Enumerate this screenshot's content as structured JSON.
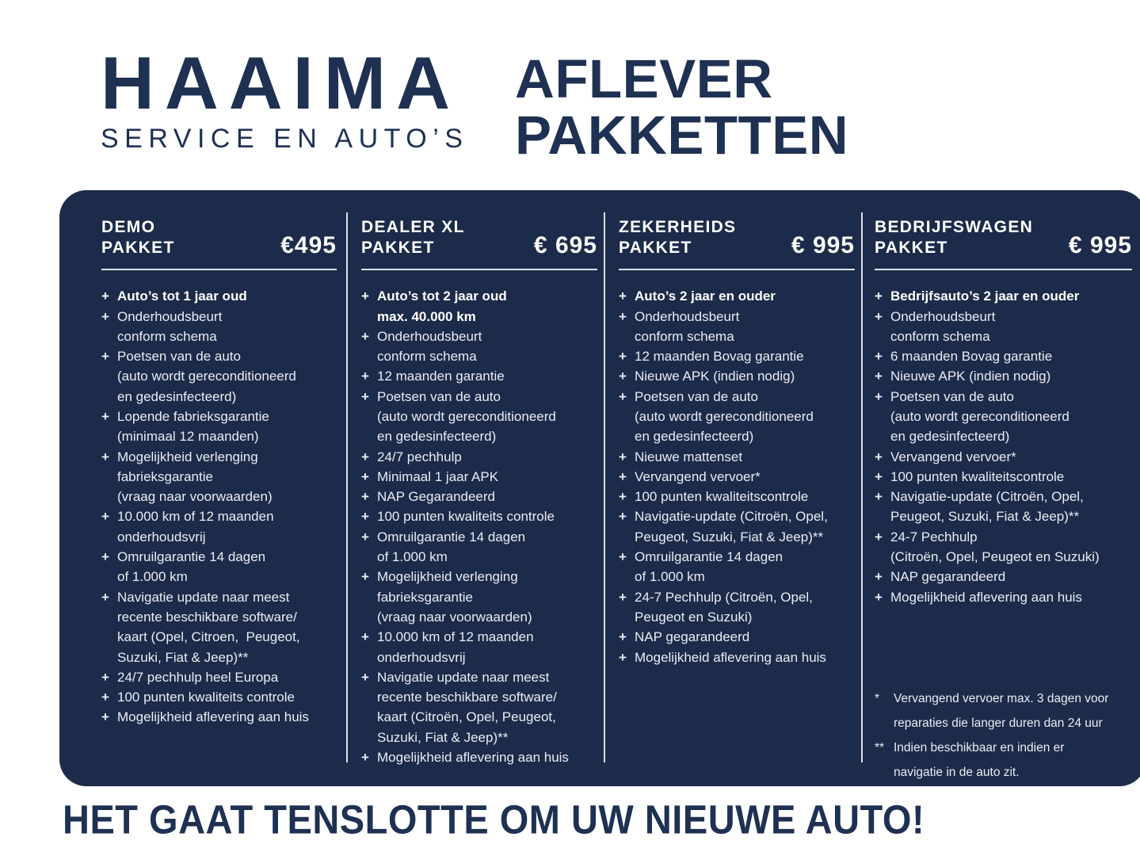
{
  "header": {
    "logo_name": "HAAIMA",
    "logo_tagline": "SERVICE EN AUTO’S",
    "title": "AFLEVER\nPAKKETTEN"
  },
  "colors": {
    "panel_bg": "#1d2b4a",
    "heading_navy": "#1f3152",
    "panel_text_light": "#e9ecf3",
    "page_bg": "#ffffff"
  },
  "icons": {
    "plus": "+"
  },
  "packages": [
    {
      "name": "DEMO\nPAKKET",
      "price": "€495",
      "items": [
        {
          "text": "Auto’s tot 1 jaar oud",
          "bold": true
        },
        {
          "text": "Onderhoudsbeurt\nconform schema"
        },
        {
          "text": "Poetsen van de auto\n(auto wordt gereconditioneerd\nen gedesinfecteerd)"
        },
        {
          "text": "Lopende fabrieksgarantie\n(minimaal 12 maanden)"
        },
        {
          "text": "Mogelijkheid verlenging\nfabrieksgarantie\n(vraag naar voorwaarden)"
        },
        {
          "text": "10.000 km of 12 maanden\nonderhoudsvrij"
        },
        {
          "text": "Omruilgarantie 14 dagen\nof 1.000 km"
        },
        {
          "text": "Navigatie update naar meest\nrecente beschikbare software/\nkaart (Opel, Citroen,  Peugeot,\nSuzuki, Fiat & Jeep)**"
        },
        {
          "text": "24/7 pechhulp heel Europa"
        },
        {
          "text": "100 punten kwaliteits controle"
        },
        {
          "text": "Mogelijkheid aflevering aan huis"
        }
      ]
    },
    {
      "name": "DEALER XL\nPAKKET",
      "price": "€ 695",
      "items": [
        {
          "text": "Auto’s tot 2 jaar oud\nmax. 40.000 km",
          "bold": true
        },
        {
          "text": "Onderhoudsbeurt\nconform schema"
        },
        {
          "text": "12 maanden garantie"
        },
        {
          "text": "Poetsen van de auto\n(auto wordt gereconditioneerd\nen gedesinfecteerd)"
        },
        {
          "text": "24/7 pechhulp"
        },
        {
          "text": "Minimaal 1 jaar APK"
        },
        {
          "text": "NAP Gegarandeerd"
        },
        {
          "text": "100 punten kwaliteits controle"
        },
        {
          "text": "Omruilgarantie 14 dagen\nof 1.000 km"
        },
        {
          "text": "Mogelijkheid verlenging\nfabrieksgarantie\n(vraag naar voorwaarden)"
        },
        {
          "text": "10.000 km of 12 maanden\nonderhoudsvrij"
        },
        {
          "text": "Navigatie update naar meest\nrecente beschikbare software/\nkaart (Citroën, Opel, Peugeot,\nSuzuki, Fiat & Jeep)**"
        },
        {
          "text": "Mogelijkheid aflevering aan huis"
        }
      ]
    },
    {
      "name": "ZEKERHEIDS\nPAKKET",
      "price": "€ 995",
      "items": [
        {
          "text": "Auto’s 2 jaar en ouder",
          "bold": true
        },
        {
          "text": "Onderhoudsbeurt\nconform schema"
        },
        {
          "text": "12 maanden Bovag garantie"
        },
        {
          "text": "Nieuwe APK (indien nodig)"
        },
        {
          "text": "Poetsen van de auto\n(auto wordt gereconditioneerd\nen gedesinfecteerd)"
        },
        {
          "text": "Nieuwe mattenset"
        },
        {
          "text": "Vervangend vervoer*"
        },
        {
          "text": "100 punten kwaliteitscontrole"
        },
        {
          "text": "Navigatie-update (Citroën, Opel,\nPeugeot, Suzuki, Fiat & Jeep)**"
        },
        {
          "text": "Omruilgarantie 14 dagen\nof 1.000 km"
        },
        {
          "text": "24-7 Pechhulp (Citroën, Opel,\nPeugeot en Suzuki)"
        },
        {
          "text": "NAP gegarandeerd"
        },
        {
          "text": "Mogelijkheid aflevering aan huis"
        }
      ]
    },
    {
      "name": "BEDRIJFSWAGEN\nPAKKET",
      "price": "€ 995",
      "items": [
        {
          "text": "Bedrijfsauto’s 2 jaar en ouder",
          "bold": true
        },
        {
          "text": "Onderhoudsbeurt\nconform schema"
        },
        {
          "text": "6 maanden Bovag garantie"
        },
        {
          "text": "Nieuwe APK (indien nodig)"
        },
        {
          "text": "Poetsen van de auto\n(auto wordt gereconditioneerd\nen gedesinfecteerd)"
        },
        {
          "text": "Vervangend vervoer*"
        },
        {
          "text": "100 punten kwaliteitscontrole"
        },
        {
          "text": "Navigatie-update (Citroën, Opel,\nPeugeot, Suzuki, Fiat & Jeep)**"
        },
        {
          "text": "24-7 Pechhulp\n(Citroën, Opel, Peugeot en Suzuki)"
        },
        {
          "text": "NAP gegarandeerd"
        },
        {
          "text": "Mogelijkheid aflevering aan huis"
        }
      ]
    }
  ],
  "footnotes": [
    {
      "marker": "*",
      "text": "Vervangend vervoer max. 3 dagen voor\nreparaties die langer duren dan 24 uur"
    },
    {
      "marker": "**",
      "text": "Indien beschikbaar en indien er\nnavigatie in de auto zit."
    }
  ],
  "footer": {
    "tagline": "HET GAAT TENSLOTTE OM UW NIEUWE AUTO!"
  }
}
